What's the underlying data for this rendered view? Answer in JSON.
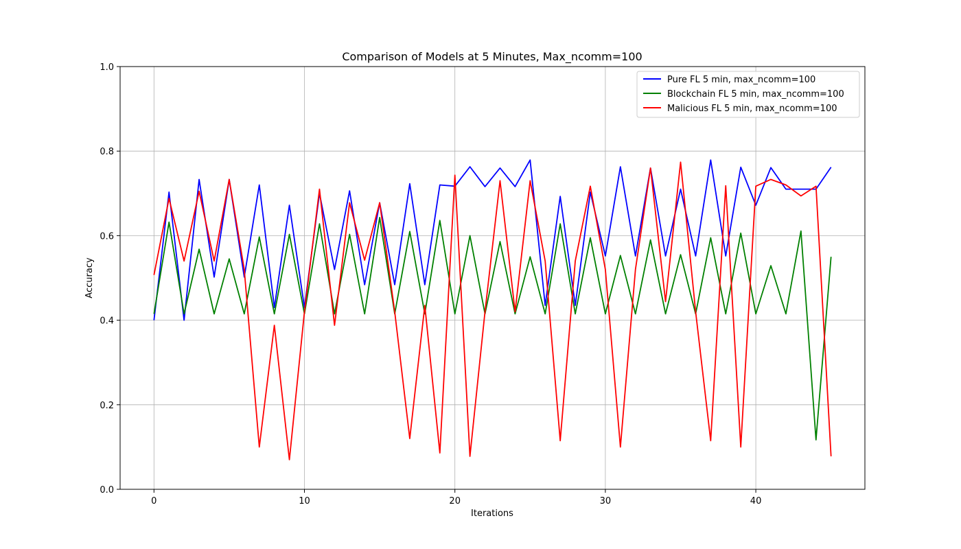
{
  "chart_data": {
    "type": "line",
    "title": "Comparison of Models at 5 Minutes, Max_ncomm=100",
    "xlabel": "Iterations",
    "ylabel": "Accuracy",
    "xlim": [
      -2.25,
      47.25
    ],
    "ylim": [
      0.0,
      1.0
    ],
    "xticks": [
      0,
      10,
      20,
      30,
      40
    ],
    "yticks": [
      0.0,
      0.2,
      0.4,
      0.6,
      0.8,
      1.0
    ],
    "grid": true,
    "legend_position": "top-right",
    "x": [
      0,
      1,
      2,
      3,
      4,
      5,
      6,
      7,
      8,
      9,
      10,
      11,
      12,
      13,
      14,
      15,
      16,
      17,
      18,
      19,
      20,
      21,
      22,
      23,
      24,
      25,
      26,
      27,
      28,
      29,
      30,
      31,
      32,
      33,
      34,
      35,
      36,
      37,
      38,
      39,
      40,
      41,
      42,
      43,
      44,
      45
    ],
    "series": [
      {
        "name": "Pure FL 5 min, max_ncomm=100",
        "color": "#0000ff",
        "values": [
          0.4,
          0.703,
          0.4,
          0.733,
          0.502,
          0.733,
          0.502,
          0.72,
          0.43,
          0.672,
          0.43,
          0.7,
          0.52,
          0.706,
          0.484,
          0.678,
          0.484,
          0.723,
          0.484,
          0.72,
          0.717,
          0.763,
          0.716,
          0.76,
          0.716,
          0.779,
          0.435,
          0.693,
          0.435,
          0.703,
          0.552,
          0.763,
          0.552,
          0.76,
          0.552,
          0.71,
          0.552,
          0.779,
          0.552,
          0.762,
          0.672,
          0.761,
          0.71,
          0.71,
          0.71,
          0.762
        ]
      },
      {
        "name": "Blockchain FL 5 min, max_ncomm=100",
        "color": "#008000",
        "values": [
          0.415,
          0.632,
          0.415,
          0.568,
          0.415,
          0.545,
          0.415,
          0.597,
          0.415,
          0.603,
          0.415,
          0.628,
          0.415,
          0.603,
          0.415,
          0.643,
          0.415,
          0.61,
          0.415,
          0.636,
          0.415,
          0.6,
          0.415,
          0.586,
          0.415,
          0.55,
          0.415,
          0.628,
          0.415,
          0.595,
          0.415,
          0.553,
          0.415,
          0.59,
          0.415,
          0.555,
          0.415,
          0.595,
          0.415,
          0.606,
          0.415,
          0.529,
          0.415,
          0.611,
          0.117,
          0.55
        ]
      },
      {
        "name": "Malicious FL 5 min, max_ncomm=100",
        "color": "#ff0000",
        "values": [
          0.507,
          0.688,
          0.54,
          0.705,
          0.54,
          0.733,
          0.52,
          0.1,
          0.388,
          0.07,
          0.42,
          0.71,
          0.388,
          0.678,
          0.542,
          0.678,
          0.42,
          0.12,
          0.435,
          0.086,
          0.743,
          0.078,
          0.42,
          0.73,
          0.42,
          0.73,
          0.54,
          0.115,
          0.54,
          0.717,
          0.52,
          0.1,
          0.52,
          0.76,
          0.444,
          0.774,
          0.42,
          0.115,
          0.718,
          0.1,
          0.717,
          0.733,
          0.72,
          0.694,
          0.717,
          0.078
        ]
      }
    ]
  }
}
